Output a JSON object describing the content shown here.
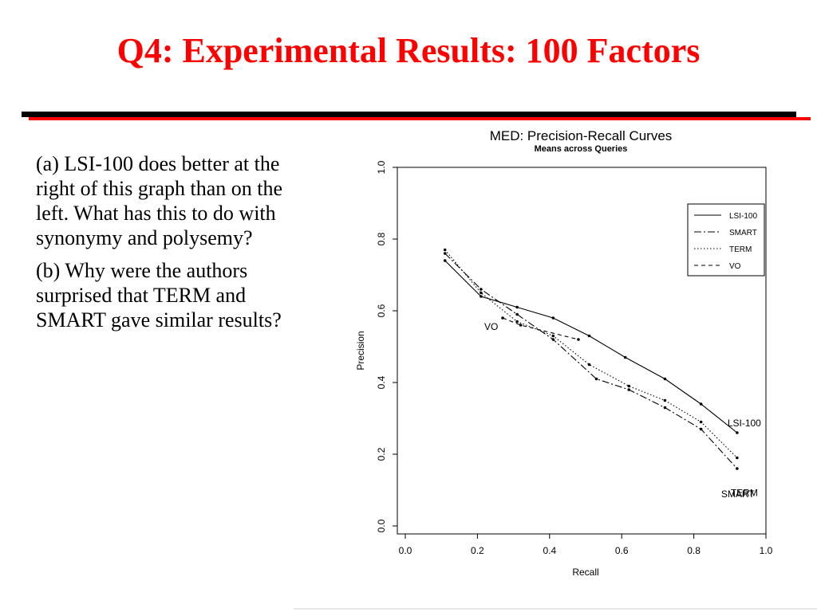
{
  "slide": {
    "title": "Q4: Experimental Results: 100 Factors",
    "questions": [
      "(a)  LSI-100 does better at the right of this graph than on the left.  What has this to do with synonymy and polysemy?",
      "(b)  Why were the authors surprised that TERM and SMART gave similar results?"
    ]
  },
  "colors": {
    "title": "#ff0000",
    "rule_black": "#000000",
    "rule_red": "#ff0000"
  },
  "chart_data": {
    "type": "line",
    "title": "MED: Precision-Recall Curves",
    "subtitle": "Means across Queries",
    "xlabel": "Recall",
    "ylabel": "Precision",
    "xlim": [
      0,
      1
    ],
    "ylim": [
      0,
      1
    ],
    "xticks": [
      "0.0",
      "0.2",
      "0.4",
      "0.6",
      "0.8",
      "1.0"
    ],
    "yticks": [
      "0.0",
      "0.2",
      "0.4",
      "0.6",
      "0.8",
      "1.0"
    ],
    "legend_position": "top-right",
    "series": [
      {
        "name": "LSI-100",
        "dash": "solid",
        "x": [
          0.11,
          0.21,
          0.31,
          0.41,
          0.51,
          0.61,
          0.72,
          0.82,
          0.92
        ],
        "y": [
          0.74,
          0.64,
          0.61,
          0.58,
          0.53,
          0.47,
          0.41,
          0.34,
          0.26
        ],
        "end_label": "LSI-100"
      },
      {
        "name": "SMART",
        "dash": "dashdot",
        "x": [
          0.11,
          0.21,
          0.31,
          0.41,
          0.53,
          0.62,
          0.72,
          0.82,
          0.92
        ],
        "y": [
          0.76,
          0.66,
          0.59,
          0.52,
          0.41,
          0.38,
          0.33,
          0.27,
          0.16
        ],
        "end_label": "SMART"
      },
      {
        "name": "TERM",
        "dash": "dotted",
        "x": [
          0.11,
          0.21,
          0.31,
          0.41,
          0.51,
          0.62,
          0.72,
          0.82,
          0.92
        ],
        "y": [
          0.77,
          0.65,
          0.57,
          0.53,
          0.45,
          0.39,
          0.35,
          0.29,
          0.19
        ],
        "end_label": "TERM"
      },
      {
        "name": "VO",
        "dash": "dashed",
        "x": [
          0.27,
          0.32,
          0.48
        ],
        "y": [
          0.58,
          0.56,
          0.52
        ],
        "end_label": "VO"
      }
    ]
  }
}
